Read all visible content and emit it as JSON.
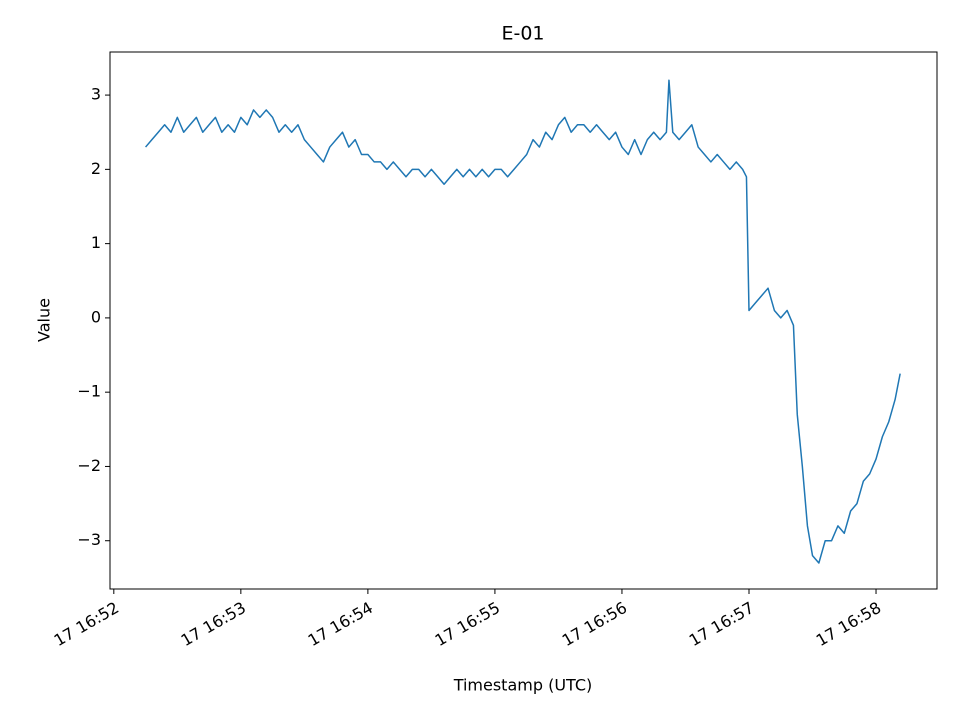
{
  "chart_data": {
    "type": "line",
    "title": "E-01",
    "x_label": "Timestamp (UTC)",
    "y_label": "Value",
    "x": [
      52.25,
      52.3,
      52.35,
      52.4,
      52.45,
      52.5,
      52.55,
      52.6,
      52.65,
      52.7,
      52.75,
      52.8,
      52.85,
      52.9,
      52.95,
      53.0,
      53.05,
      53.1,
      53.15,
      53.2,
      53.25,
      53.3,
      53.35,
      53.4,
      53.45,
      53.5,
      53.55,
      53.6,
      53.65,
      53.7,
      53.75,
      53.8,
      53.85,
      53.9,
      53.95,
      54.0,
      54.05,
      54.1,
      54.15,
      54.2,
      54.25,
      54.3,
      54.35,
      54.4,
      54.45,
      54.5,
      54.55,
      54.6,
      54.65,
      54.7,
      54.75,
      54.8,
      54.85,
      54.9,
      54.95,
      55.0,
      55.05,
      55.1,
      55.15,
      55.2,
      55.25,
      55.3,
      55.35,
      55.4,
      55.45,
      55.5,
      55.55,
      55.6,
      55.65,
      55.7,
      55.75,
      55.8,
      55.85,
      55.9,
      55.95,
      56.0,
      56.05,
      56.1,
      56.15,
      56.2,
      56.25,
      56.3,
      56.35,
      56.37,
      56.4,
      56.45,
      56.5,
      56.55,
      56.6,
      56.65,
      56.7,
      56.75,
      56.8,
      56.85,
      56.9,
      56.95,
      56.98,
      57.0,
      57.05,
      57.1,
      57.15,
      57.2,
      57.25,
      57.3,
      57.35,
      57.38,
      57.42,
      57.46,
      57.5,
      57.55,
      57.6,
      57.65,
      57.7,
      57.75,
      57.8,
      57.85,
      57.9,
      57.95,
      58.0,
      58.05,
      58.1,
      58.15,
      58.19
    ],
    "series": [
      {
        "name": "E-01",
        "color": "#1f77b4",
        "values": [
          2.3,
          2.4,
          2.5,
          2.6,
          2.5,
          2.7,
          2.5,
          2.6,
          2.7,
          2.5,
          2.6,
          2.7,
          2.5,
          2.6,
          2.5,
          2.7,
          2.6,
          2.8,
          2.7,
          2.8,
          2.7,
          2.5,
          2.6,
          2.5,
          2.6,
          2.4,
          2.3,
          2.2,
          2.1,
          2.3,
          2.4,
          2.5,
          2.3,
          2.4,
          2.2,
          2.2,
          2.1,
          2.1,
          2.0,
          2.1,
          2.0,
          1.9,
          2.0,
          2.0,
          1.9,
          2.0,
          1.9,
          1.8,
          1.9,
          2.0,
          1.9,
          2.0,
          1.9,
          2.0,
          1.9,
          2.0,
          2.0,
          1.9,
          2.0,
          2.1,
          2.2,
          2.4,
          2.3,
          2.5,
          2.4,
          2.6,
          2.7,
          2.5,
          2.6,
          2.6,
          2.5,
          2.6,
          2.5,
          2.4,
          2.5,
          2.3,
          2.2,
          2.4,
          2.2,
          2.4,
          2.5,
          2.4,
          2.5,
          3.2,
          2.5,
          2.4,
          2.5,
          2.6,
          2.3,
          2.2,
          2.1,
          2.2,
          2.1,
          2.0,
          2.1,
          2.0,
          1.9,
          0.1,
          0.2,
          0.3,
          0.4,
          0.1,
          0.0,
          0.1,
          -0.1,
          -1.3,
          -2.0,
          -2.8,
          -3.2,
          -3.3,
          -3.0,
          -3.0,
          -2.8,
          -2.9,
          -2.6,
          -2.5,
          -2.2,
          -2.1,
          -1.9,
          -1.6,
          -1.4,
          -1.1,
          -0.75
        ]
      }
    ],
    "xlim": [
      51.97,
      58.48
    ],
    "ylim": [
      -3.65,
      3.58
    ],
    "xticks": [
      {
        "value": 52,
        "label": "17 16:52"
      },
      {
        "value": 53,
        "label": "17 16:53"
      },
      {
        "value": 54,
        "label": "17 16:54"
      },
      {
        "value": 55,
        "label": "17 16:55"
      },
      {
        "value": 56,
        "label": "17 16:56"
      },
      {
        "value": 57,
        "label": "17 16:57"
      },
      {
        "value": 58,
        "label": "17 16:58"
      }
    ],
    "yticks": [
      {
        "value": -3,
        "label": "−3"
      },
      {
        "value": -2,
        "label": "−2"
      },
      {
        "value": -1,
        "label": "−1"
      },
      0,
      1,
      2,
      3
    ]
  }
}
